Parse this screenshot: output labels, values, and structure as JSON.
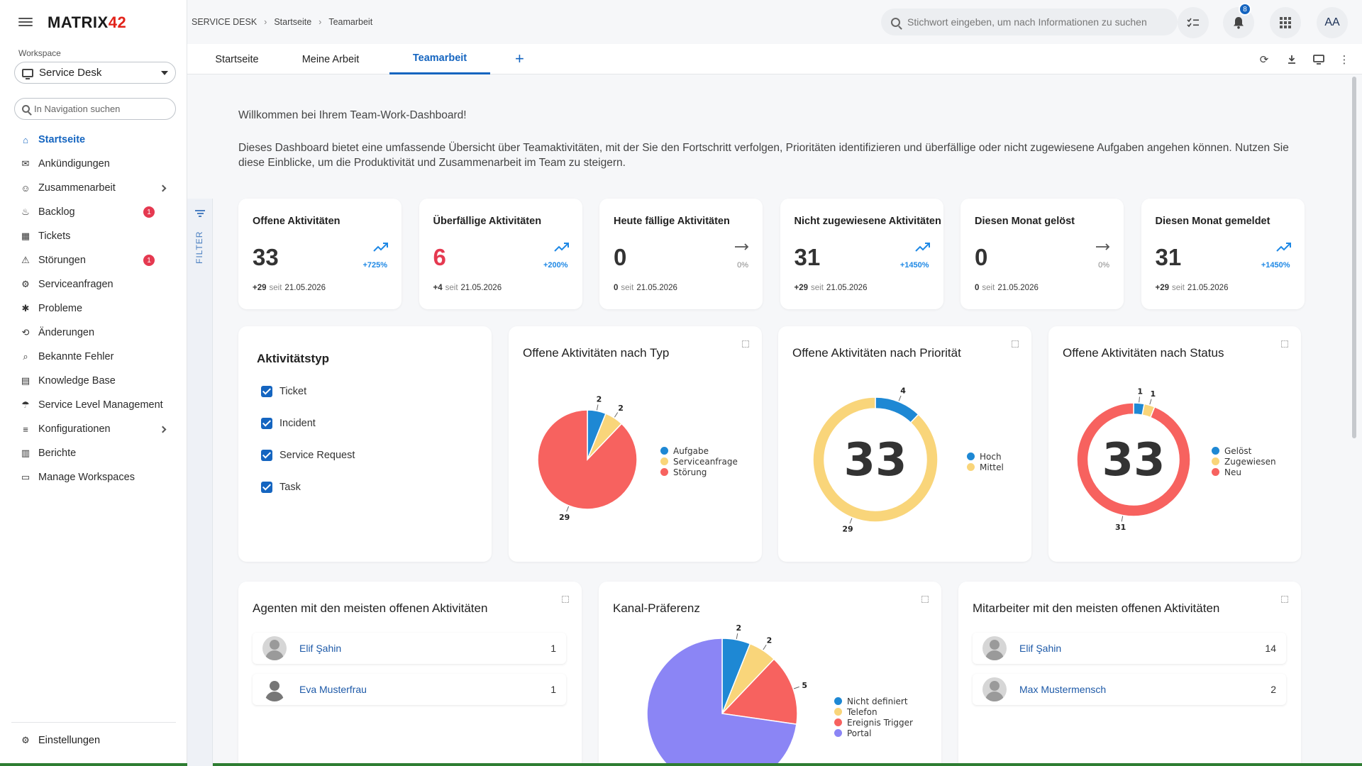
{
  "app": {
    "logo_text": "MATRIX",
    "logo_num": "42"
  },
  "sidebar": {
    "workspace_label": "Workspace",
    "workspace_value": "Service Desk",
    "nav_search_placeholder": "In Navigation suchen",
    "items": [
      {
        "label": "Startseite",
        "icon": "home-icon",
        "active": true
      },
      {
        "label": "Ankündigungen",
        "icon": "megaphone-icon"
      },
      {
        "label": "Zusammenarbeit",
        "icon": "people-icon",
        "chevron": true
      },
      {
        "label": "Backlog",
        "icon": "fire-icon",
        "badge": "1"
      },
      {
        "label": "Tickets",
        "icon": "ticket-icon"
      },
      {
        "label": "Störungen",
        "icon": "incident-icon",
        "badge": "1"
      },
      {
        "label": "Serviceanfragen",
        "icon": "request-icon"
      },
      {
        "label": "Probleme",
        "icon": "bug-icon"
      },
      {
        "label": "Änderungen",
        "icon": "change-icon"
      },
      {
        "label": "Bekannte Fehler",
        "icon": "known-error-icon"
      },
      {
        "label": "Knowledge Base",
        "icon": "book-icon"
      },
      {
        "label": "Service Level Management",
        "icon": "sla-icon"
      },
      {
        "label": "Konfigurationen",
        "icon": "config-icon",
        "chevron": true
      },
      {
        "label": "Berichte",
        "icon": "report-icon"
      },
      {
        "label": "Manage Workspaces",
        "icon": "workspace-icon"
      }
    ],
    "settings_label": "Einstellungen"
  },
  "breadcrumb": [
    "SERVICE DESK",
    "Startseite",
    "Teamarbeit"
  ],
  "topbar": {
    "search_placeholder": "Stichwort eingeben, um nach Informationen zu suchen",
    "notification_count": "8",
    "avatar_initials": "AA"
  },
  "tabs": [
    {
      "label": "Startseite"
    },
    {
      "label": "Meine Arbeit"
    },
    {
      "label": "Teamarbeit",
      "active": true
    }
  ],
  "filter_label": "FILTER",
  "intro": {
    "line1": "Willkommen bei Ihrem Team-Work-Dashboard!",
    "line2": "Dieses Dashboard bietet eine umfassende Übersicht über Teamaktivitäten, mit der Sie den Fortschritt verfolgen, Prioritäten identifizieren und überfällige oder nicht zugewiesene Aufgaben angehen können. Nutzen Sie diese Einblicke, um die Produktivität und Zusammenarbeit im Team zu steigern."
  },
  "kpis": [
    {
      "title": "Offene Aktivitäten",
      "value": "33",
      "trend": "up",
      "pct": "+725%",
      "delta": "+29",
      "seit": "seit",
      "date": "21.05.2026"
    },
    {
      "title": "Überfällige Aktivitäten",
      "value": "6",
      "red": true,
      "trend": "up",
      "pct": "+200%",
      "delta": "+4",
      "seit": "seit",
      "date": "21.05.2026"
    },
    {
      "title": "Heute fällige Aktivitäten",
      "value": "0",
      "trend": "flat",
      "pct": "0%",
      "delta": "0",
      "seit": "seit",
      "date": "21.05.2026"
    },
    {
      "title": "Nicht zugewiesene Aktivitäten",
      "value": "31",
      "trend": "up",
      "pct": "+1450%",
      "delta": "+29",
      "seit": "seit",
      "date": "21.05.2026"
    },
    {
      "title": "Diesen Monat gelöst",
      "value": "0",
      "trend": "flat",
      "pct": "0%",
      "delta": "0",
      "seit": "seit",
      "date": "21.05.2026"
    },
    {
      "title": "Diesen Monat gemeldet",
      "value": "31",
      "trend": "up",
      "pct": "+1450%",
      "delta": "+29",
      "seit": "seit",
      "date": "21.05.2026"
    }
  ],
  "activity_filter": {
    "title": "Aktivitätstyp",
    "options": [
      "Ticket",
      "Incident",
      "Service Request",
      "Task"
    ]
  },
  "widgets": {
    "by_type_title": "Offene Aktivitäten nach Typ",
    "by_priority_title": "Offene Aktivitäten nach Priorität",
    "by_status_title": "Offene Aktivitäten nach Status",
    "agents_title": "Agenten mit den meisten offenen Aktivitäten",
    "channel_title": "Kanal-Präferenz",
    "employees_title": "Mitarbeiter mit den meisten offenen Aktivitäten"
  },
  "chart_data": [
    {
      "type": "pie",
      "title": "Offene Aktivitäten nach Typ",
      "slices": [
        {
          "label": "Aufgabe",
          "value": 2,
          "color": "#1e88d4"
        },
        {
          "label": "Serviceanfrage",
          "value": 2,
          "color": "#f9d57a"
        },
        {
          "label": "Störung",
          "value": 29,
          "color": "#f7625f"
        }
      ],
      "legend": "right"
    },
    {
      "type": "donut",
      "title": "Offene Aktivitäten nach Priorität",
      "center": "33",
      "slices": [
        {
          "label": "Hoch",
          "value": 4,
          "color": "#1e88d4"
        },
        {
          "label": "Mittel",
          "value": 29,
          "color": "#f9d57a"
        }
      ],
      "legend": "right"
    },
    {
      "type": "donut",
      "title": "Offene Aktivitäten nach Status",
      "center": "33",
      "slices": [
        {
          "label": "Gelöst",
          "value": 1,
          "color": "#1e88d4"
        },
        {
          "label": "Zugewiesen",
          "value": 1,
          "color": "#f9d57a"
        },
        {
          "label": "Neu",
          "value": 31,
          "color": "#f7625f"
        }
      ],
      "legend": "right"
    },
    {
      "type": "pie",
      "title": "Kanal-Präferenz",
      "slices": [
        {
          "label": "Nicht definiert",
          "value": 2,
          "color": "#1e88d4"
        },
        {
          "label": "Telefon",
          "value": 2,
          "color": "#f9d57a"
        },
        {
          "label": "Ereignis Trigger",
          "value": 5,
          "color": "#f7625f"
        },
        {
          "label": "Portal",
          "value": 24,
          "color": "#8b85f5"
        }
      ],
      "legend": "right"
    }
  ],
  "agents": [
    {
      "name": "Elif Şahin",
      "count": "1",
      "photo": true
    },
    {
      "name": "Eva Musterfrau",
      "count": "1",
      "photo": false
    }
  ],
  "employees": [
    {
      "name": "Elif Şahin",
      "count": "14",
      "photo": true
    },
    {
      "name": "Max Mustermensch",
      "count": "2",
      "photo": true
    }
  ]
}
